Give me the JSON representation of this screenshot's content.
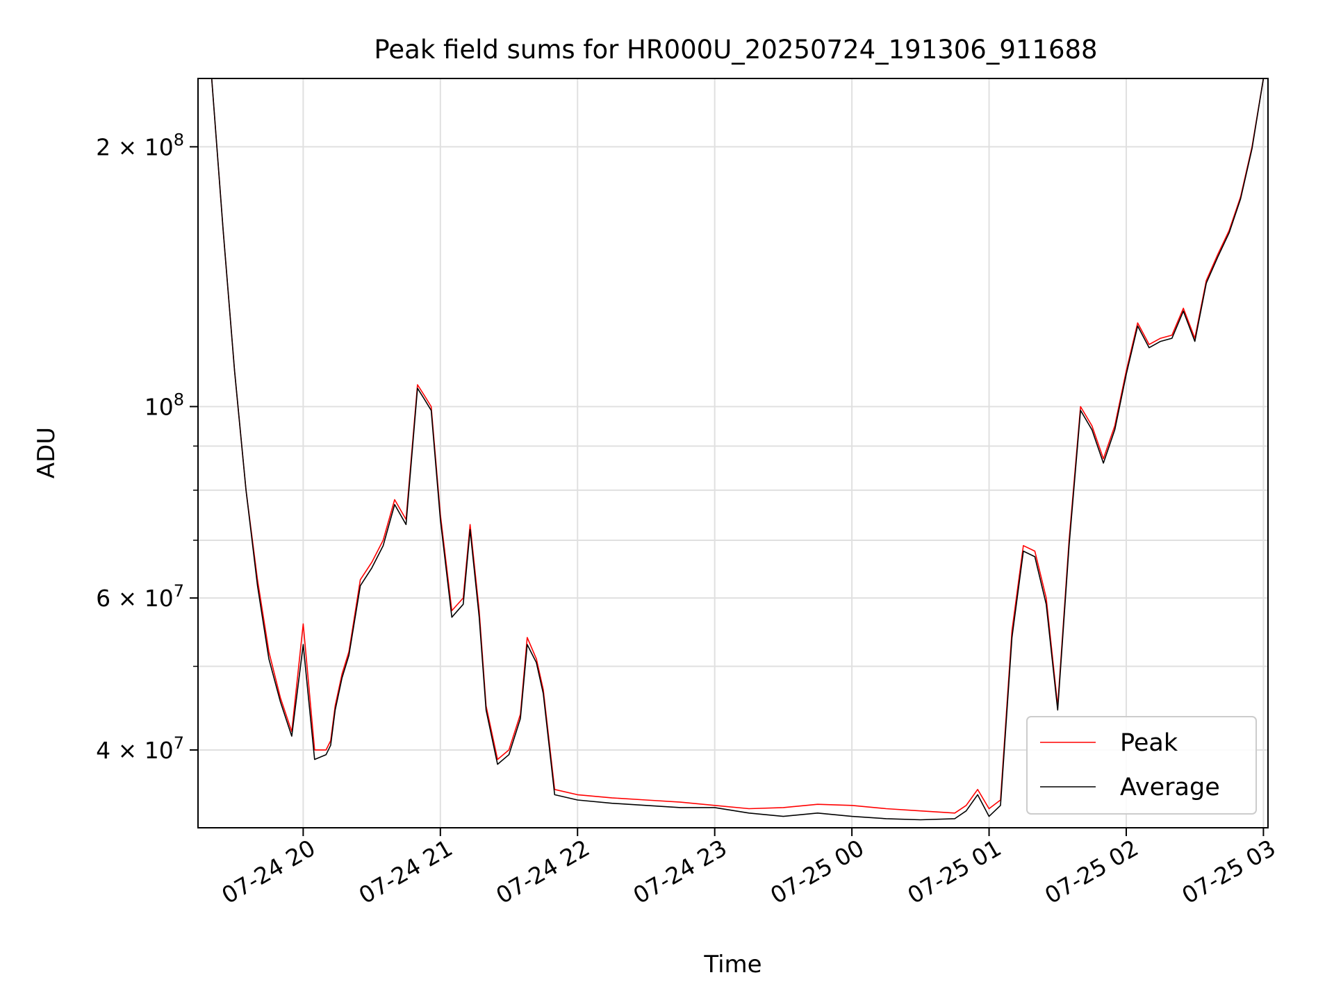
{
  "chart_data": {
    "type": "line",
    "title": "Peak field sums for HR000U_20250724_191306_911688",
    "xlabel": "Time",
    "ylabel": "ADU",
    "x_kind": "datetime",
    "xlim": [
      "2025-07-24 19:14",
      "2025-07-25 03:02"
    ],
    "ylim": [
      32500000,
      240000000
    ],
    "yscale": "log",
    "grid": true,
    "legend_position": "lower right",
    "x_ticks": [
      {
        "t": "2025-07-24 20:00",
        "label": "07-24 20"
      },
      {
        "t": "2025-07-24 21:00",
        "label": "07-24 21"
      },
      {
        "t": "2025-07-24 22:00",
        "label": "07-24 22"
      },
      {
        "t": "2025-07-24 23:00",
        "label": "07-24 23"
      },
      {
        "t": "2025-07-25 00:00",
        "label": "07-25 00"
      },
      {
        "t": "2025-07-25 01:00",
        "label": "07-25 01"
      },
      {
        "t": "2025-07-25 02:00",
        "label": "07-25 02"
      },
      {
        "t": "2025-07-25 03:00",
        "label": "07-25 03"
      }
    ],
    "y_ticks_major": [
      {
        "value": 40000000,
        "mantissa": "4",
        "exp": "7"
      },
      {
        "value": 60000000,
        "mantissa": "6",
        "exp": "7"
      },
      {
        "value": 100000000,
        "mantissa": "",
        "exp": "8"
      },
      {
        "value": 200000000,
        "mantissa": "2",
        "exp": "8"
      }
    ],
    "y_ticks_minor": [
      50000000,
      70000000,
      80000000,
      90000000
    ],
    "series": [
      {
        "name": "Peak",
        "color": "#ff0000",
        "x": [
          "2025-07-24 19:20",
          "2025-07-24 19:25",
          "2025-07-24 19:30",
          "2025-07-24 19:35",
          "2025-07-24 19:40",
          "2025-07-24 19:45",
          "2025-07-24 19:50",
          "2025-07-24 19:55",
          "2025-07-24 20:00",
          "2025-07-24 20:05",
          "2025-07-24 20:10",
          "2025-07-24 20:12",
          "2025-07-24 20:14",
          "2025-07-24 20:17",
          "2025-07-24 20:20",
          "2025-07-24 20:25",
          "2025-07-24 20:30",
          "2025-07-24 20:35",
          "2025-07-24 20:40",
          "2025-07-24 20:45",
          "2025-07-24 20:50",
          "2025-07-24 20:53",
          "2025-07-24 20:56",
          "2025-07-24 21:00",
          "2025-07-24 21:05",
          "2025-07-24 21:10",
          "2025-07-24 21:13",
          "2025-07-24 21:17",
          "2025-07-24 21:20",
          "2025-07-24 21:25",
          "2025-07-24 21:30",
          "2025-07-24 21:35",
          "2025-07-24 21:38",
          "2025-07-24 21:42",
          "2025-07-24 21:45",
          "2025-07-24 21:50",
          "2025-07-24 22:00",
          "2025-07-24 22:15",
          "2025-07-24 22:30",
          "2025-07-24 22:45",
          "2025-07-24 23:00",
          "2025-07-24 23:15",
          "2025-07-24 23:30",
          "2025-07-24 23:45",
          "2025-07-25 00:00",
          "2025-07-25 00:15",
          "2025-07-25 00:30",
          "2025-07-25 00:45",
          "2025-07-25 00:50",
          "2025-07-25 00:55",
          "2025-07-25 01:00",
          "2025-07-25 01:05",
          "2025-07-25 01:10",
          "2025-07-25 01:15",
          "2025-07-25 01:20",
          "2025-07-25 01:25",
          "2025-07-25 01:30",
          "2025-07-25 01:35",
          "2025-07-25 01:40",
          "2025-07-25 01:45",
          "2025-07-25 01:50",
          "2025-07-25 01:55",
          "2025-07-25 02:00",
          "2025-07-25 02:05",
          "2025-07-25 02:10",
          "2025-07-25 02:15",
          "2025-07-25 02:20",
          "2025-07-25 02:25",
          "2025-07-25 02:30",
          "2025-07-25 02:35",
          "2025-07-25 02:40",
          "2025-07-25 02:45",
          "2025-07-25 02:50",
          "2025-07-25 02:55",
          "2025-07-25 03:00"
        ],
        "y": [
          240000000,
          160000000,
          110000000,
          80000000,
          63000000,
          52000000,
          46000000,
          42000000,
          56000000,
          40000000,
          40000000,
          41000000,
          45000000,
          49000000,
          52000000,
          63000000,
          66000000,
          70000000,
          78000000,
          74000000,
          106000000,
          103000000,
          100000000,
          75000000,
          58000000,
          60000000,
          73000000,
          58000000,
          45000000,
          39000000,
          40000000,
          44000000,
          54000000,
          51000000,
          47000000,
          36000000,
          35500000,
          35200000,
          35000000,
          34800000,
          34500000,
          34200000,
          34300000,
          34600000,
          34500000,
          34200000,
          34000000,
          33800000,
          34500000,
          36000000,
          34200000,
          35000000,
          55000000,
          69000000,
          68000000,
          60000000,
          45000000,
          70000000,
          100000000,
          95000000,
          87000000,
          95000000,
          110000000,
          125000000,
          118000000,
          120000000,
          121000000,
          130000000,
          120000000,
          140000000,
          150000000,
          160000000,
          175000000,
          200000000,
          240000000
        ]
      },
      {
        "name": "Average",
        "color": "#000000",
        "x": [
          "2025-07-24 19:20",
          "2025-07-24 19:25",
          "2025-07-24 19:30",
          "2025-07-24 19:35",
          "2025-07-24 19:40",
          "2025-07-24 19:45",
          "2025-07-24 19:50",
          "2025-07-24 19:55",
          "2025-07-24 20:00",
          "2025-07-24 20:05",
          "2025-07-24 20:10",
          "2025-07-24 20:12",
          "2025-07-24 20:14",
          "2025-07-24 20:17",
          "2025-07-24 20:20",
          "2025-07-24 20:25",
          "2025-07-24 20:30",
          "2025-07-24 20:35",
          "2025-07-24 20:40",
          "2025-07-24 20:45",
          "2025-07-24 20:50",
          "2025-07-24 20:53",
          "2025-07-24 20:56",
          "2025-07-24 21:00",
          "2025-07-24 21:05",
          "2025-07-24 21:10",
          "2025-07-24 21:13",
          "2025-07-24 21:17",
          "2025-07-24 21:20",
          "2025-07-24 21:25",
          "2025-07-24 21:30",
          "2025-07-24 21:35",
          "2025-07-24 21:38",
          "2025-07-24 21:42",
          "2025-07-24 21:45",
          "2025-07-24 21:50",
          "2025-07-24 22:00",
          "2025-07-24 22:15",
          "2025-07-24 22:30",
          "2025-07-24 22:45",
          "2025-07-24 23:00",
          "2025-07-24 23:15",
          "2025-07-24 23:30",
          "2025-07-24 23:45",
          "2025-07-25 00:00",
          "2025-07-25 00:15",
          "2025-07-25 00:30",
          "2025-07-25 00:45",
          "2025-07-25 00:50",
          "2025-07-25 00:55",
          "2025-07-25 01:00",
          "2025-07-25 01:05",
          "2025-07-25 01:10",
          "2025-07-25 01:15",
          "2025-07-25 01:20",
          "2025-07-25 01:25",
          "2025-07-25 01:30",
          "2025-07-25 01:35",
          "2025-07-25 01:40",
          "2025-07-25 01:45",
          "2025-07-25 01:50",
          "2025-07-25 01:55",
          "2025-07-25 02:00",
          "2025-07-25 02:05",
          "2025-07-25 02:10",
          "2025-07-25 02:15",
          "2025-07-25 02:20",
          "2025-07-25 02:25",
          "2025-07-25 02:30",
          "2025-07-25 02:35",
          "2025-07-25 02:40",
          "2025-07-25 02:45",
          "2025-07-25 02:50",
          "2025-07-25 02:55",
          "2025-07-25 03:00"
        ],
        "y": [
          240000000,
          160000000,
          110000000,
          80000000,
          62000000,
          51000000,
          45500000,
          41500000,
          53000000,
          39000000,
          39500000,
          40500000,
          44500000,
          48500000,
          51500000,
          62000000,
          65000000,
          69000000,
          77000000,
          73000000,
          105000000,
          102000000,
          99000000,
          74000000,
          57000000,
          59000000,
          72000000,
          57000000,
          44500000,
          38500000,
          39500000,
          43500000,
          53000000,
          50500000,
          46500000,
          35500000,
          35000000,
          34700000,
          34500000,
          34300000,
          34300000,
          33800000,
          33500000,
          33800000,
          33500000,
          33300000,
          33200000,
          33300000,
          34000000,
          35500000,
          33500000,
          34500000,
          54000000,
          68000000,
          67000000,
          59000000,
          44500000,
          69000000,
          99000000,
          94000000,
          86000000,
          94000000,
          109000000,
          124000000,
          117000000,
          119000000,
          120000000,
          129000000,
          119000000,
          139000000,
          149000000,
          159000000,
          174000000,
          199000000,
          240000000
        ]
      }
    ]
  }
}
